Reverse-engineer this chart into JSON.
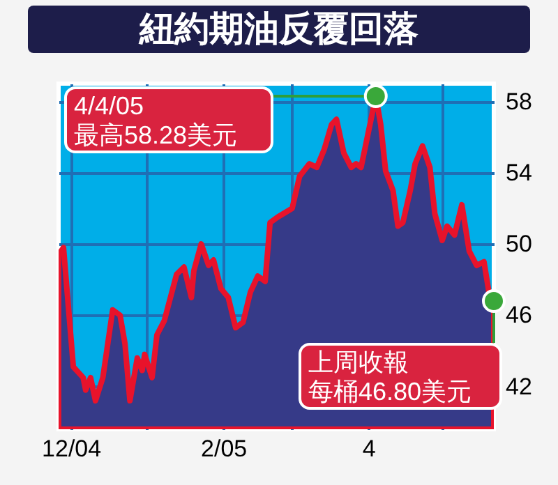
{
  "chart_data": {
    "type": "area",
    "title": "紐約期油反覆回落",
    "x": [
      "2004-11-26",
      "2004-11-28",
      "2004-12-02",
      "2004-12-06",
      "2004-12-07",
      "2004-12-09",
      "2004-12-11",
      "2004-12-14",
      "2004-12-18",
      "2004-12-21",
      "2004-12-23",
      "2004-12-25",
      "2004-12-28",
      "2004-12-30",
      "2004-12-31",
      "2005-01-03",
      "2005-01-05",
      "2005-01-08",
      "2005-01-13",
      "2005-01-16",
      "2005-01-19",
      "2005-01-20",
      "2005-01-23",
      "2005-01-26",
      "2005-01-28",
      "2005-01-31",
      "2005-02-03",
      "2005-02-06",
      "2005-02-09",
      "2005-02-12",
      "2005-02-15",
      "2005-02-18",
      "2005-02-20",
      "2005-02-23",
      "2005-03-01",
      "2005-03-04",
      "2005-03-08",
      "2005-03-11",
      "2005-03-14",
      "2005-03-17",
      "2005-03-19",
      "2005-03-22",
      "2005-03-25",
      "2005-03-27",
      "2005-03-29",
      "2005-04-04",
      "2005-04-06",
      "2005-04-08",
      "2005-04-11",
      "2005-04-13",
      "2005-04-15",
      "2005-04-18",
      "2005-04-20",
      "2005-04-23",
      "2005-04-26",
      "2005-04-28",
      "2005-05-01",
      "2005-05-03",
      "2005-05-06",
      "2005-05-09",
      "2005-05-12",
      "2005-05-15",
      "2005-05-18",
      "2005-05-20",
      "2005-05-22"
    ],
    "series": [
      {
        "color": "#e8132b",
        "values": [
          49.4,
          49.8,
          43.1,
          42.5,
          41.8,
          42.5,
          41.2,
          42.5,
          46.3,
          46.0,
          44.4,
          41.2,
          43.6,
          42.9,
          43.8,
          42.5,
          44.9,
          45.7,
          48.3,
          48.7,
          47.0,
          48.5,
          50.0,
          48.8,
          49.1,
          47.5,
          47.0,
          45.3,
          45.6,
          47.3,
          48.2,
          47.9,
          51.2,
          51.5,
          52.0,
          53.8,
          54.5,
          54.3,
          55.3,
          56.7,
          57.0,
          55.1,
          54.3,
          54.5,
          54.3,
          58.28,
          56.7,
          54.1,
          53.0,
          51.0,
          51.2,
          53.0,
          54.5,
          55.5,
          54.3,
          51.7,
          50.2,
          51.0,
          50.5,
          52.2,
          49.6,
          48.8,
          49.0,
          47.3,
          46.8
        ]
      }
    ],
    "xlim": [
      "2004-11-26",
      "2005-05-22"
    ],
    "xticks": [
      {
        "value": "2004-12-01",
        "label": "12/04"
      },
      {
        "value": "2005-01-01",
        "label": null
      },
      {
        "value": "2005-02-01",
        "label": "2/05"
      },
      {
        "value": "2005-03-01",
        "label": null
      },
      {
        "value": "2005-04-01",
        "label": "4"
      },
      {
        "value": "2005-05-01",
        "label": null
      }
    ],
    "ylim": [
      39.6,
      59
    ],
    "yticks": [
      42,
      46,
      50,
      54,
      58
    ],
    "grid": true,
    "annotations": [
      "4/4/05",
      "最高58.28美元",
      "上周收報",
      "每桶46.80美元"
    ]
  }
}
